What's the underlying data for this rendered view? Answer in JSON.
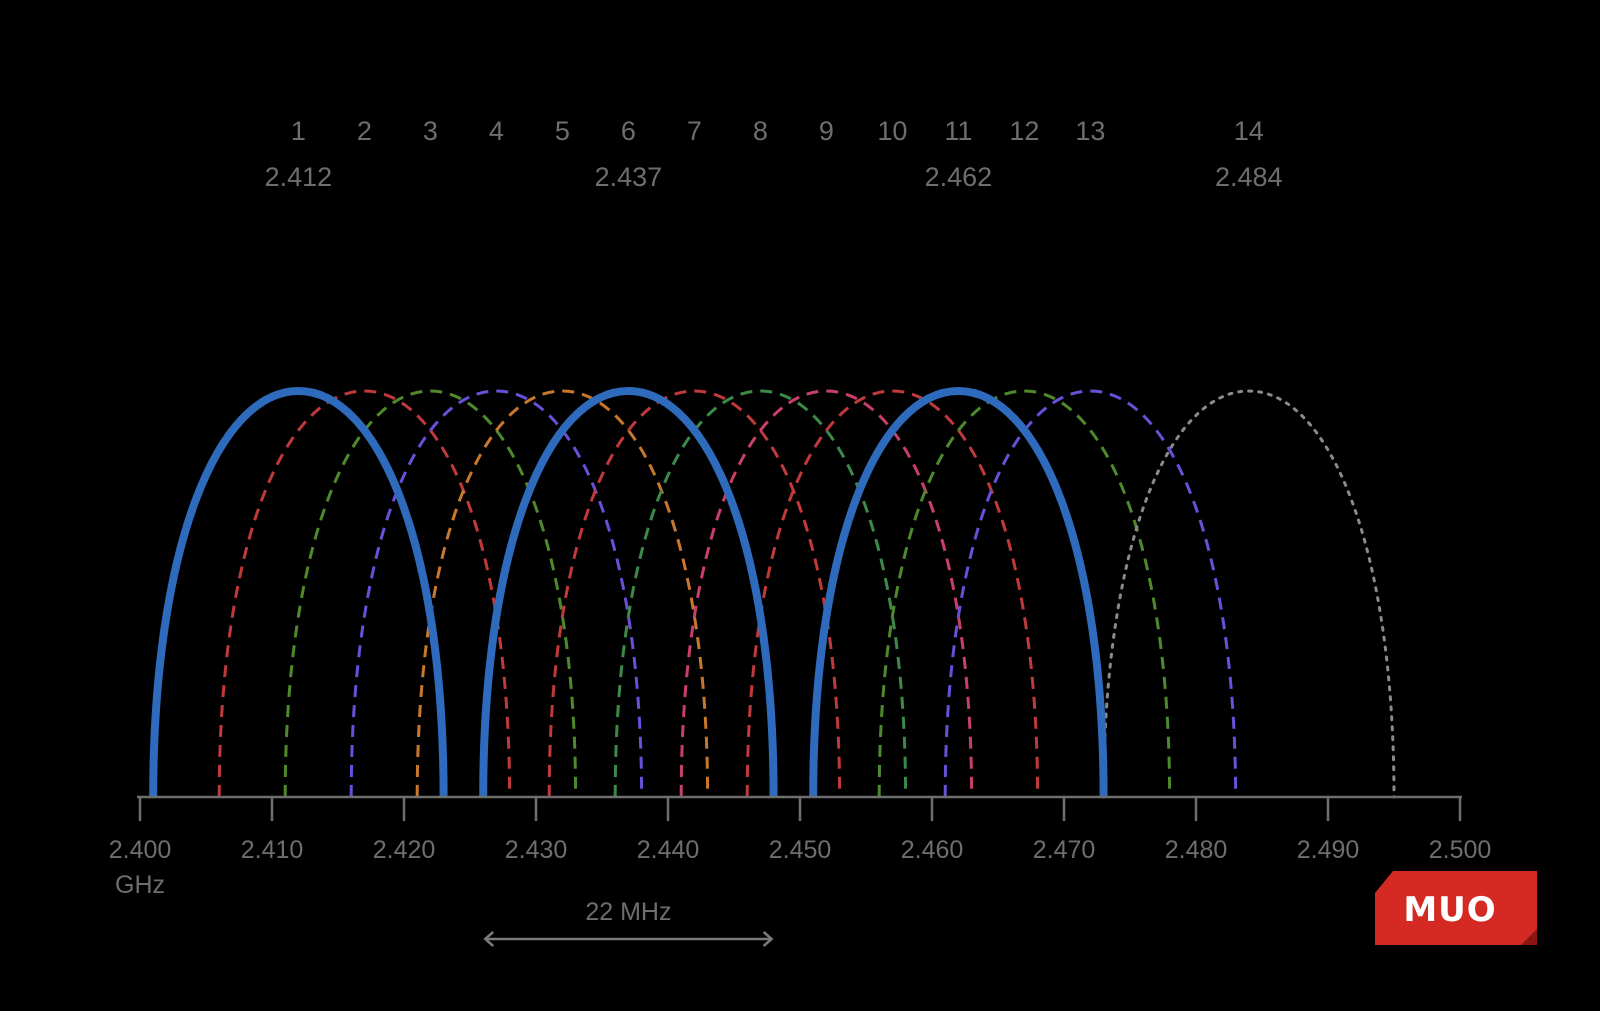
{
  "diagram": {
    "unit_label": "GHz",
    "freq_axis": {
      "min": 2.4,
      "max": 2.5,
      "ticks": [
        "2.400",
        "2.410",
        "2.420",
        "2.430",
        "2.440",
        "2.450",
        "2.460",
        "2.470",
        "2.480",
        "2.490",
        "2.500"
      ]
    },
    "channels": [
      {
        "number": "1",
        "center": 2.412,
        "center_label": "2.412",
        "style": "solid",
        "color": "#2e6bbd"
      },
      {
        "number": "2",
        "center": 2.417,
        "center_label": "",
        "style": "dashed",
        "color": "#c0393b"
      },
      {
        "number": "3",
        "center": 2.422,
        "center_label": "",
        "style": "dashed",
        "color": "#4e8a2c"
      },
      {
        "number": "4",
        "center": 2.427,
        "center_label": "",
        "style": "dashed",
        "color": "#6a4fd8"
      },
      {
        "number": "5",
        "center": 2.432,
        "center_label": "",
        "style": "dashed",
        "color": "#c8782c"
      },
      {
        "number": "6",
        "center": 2.437,
        "center_label": "2.437",
        "style": "solid",
        "color": "#2e6bbd"
      },
      {
        "number": "7",
        "center": 2.442,
        "center_label": "",
        "style": "dashed",
        "color": "#c0393b"
      },
      {
        "number": "8",
        "center": 2.447,
        "center_label": "",
        "style": "dashed",
        "color": "#3c8a4a"
      },
      {
        "number": "9",
        "center": 2.452,
        "center_label": "",
        "style": "dashed",
        "color": "#c8406a"
      },
      {
        "number": "10",
        "center": 2.457,
        "center_label": "",
        "style": "dashed",
        "color": "#c0393b"
      },
      {
        "number": "11",
        "center": 2.462,
        "center_label": "2.462",
        "style": "solid",
        "color": "#2e6bbd"
      },
      {
        "number": "12",
        "center": 2.467,
        "center_label": "",
        "style": "dashed",
        "color": "#4e8a2c"
      },
      {
        "number": "13",
        "center": 2.472,
        "center_label": "",
        "style": "dashed",
        "color": "#6a4fd8"
      },
      {
        "number": "14",
        "center": 2.484,
        "center_label": "2.484",
        "style": "dotted",
        "color": "#8a8a8a"
      }
    ],
    "bandwidth": {
      "label": "22 MHz",
      "from": 2.426,
      "to": 2.448
    },
    "logo": {
      "text": "MUO",
      "color": "#d42a23"
    }
  }
}
